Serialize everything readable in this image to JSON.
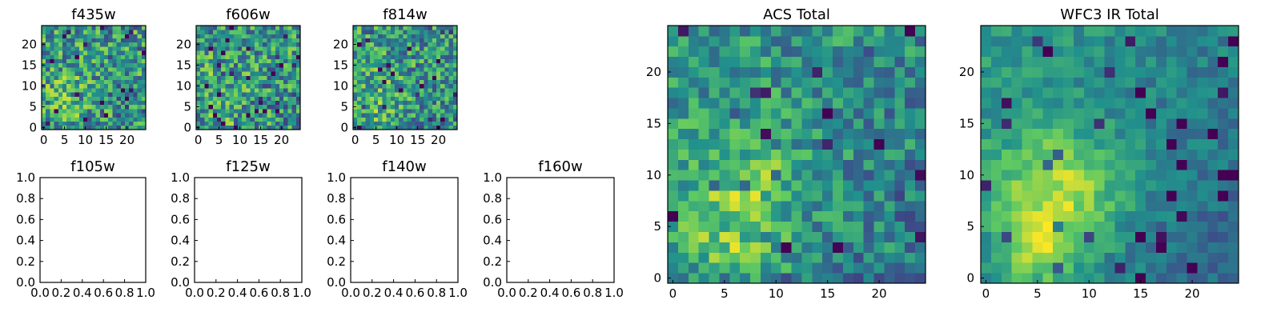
{
  "colormap": {
    "name": "viridis",
    "stops": [
      "#440154",
      "#3b528b",
      "#21918c",
      "#5ec962",
      "#fde725"
    ]
  },
  "chart_data": [
    {
      "type": "heatmap",
      "title": "f435w",
      "ylim": [
        -0.5,
        24.5
      ],
      "xlim": [
        -0.5,
        24.5
      ],
      "yticks": [
        0,
        5,
        10,
        15,
        20
      ],
      "xticks": [
        0,
        5,
        10,
        15,
        20
      ],
      "peak": {
        "x": 6,
        "y": 8
      },
      "contrast": 0.1,
      "noise": 0.32,
      "seed": 11
    },
    {
      "type": "heatmap",
      "title": "f606w",
      "ylim": [
        -0.5,
        24.5
      ],
      "xlim": [
        -0.5,
        24.5
      ],
      "yticks": [
        0,
        5,
        10,
        15,
        20
      ],
      "xticks": [
        0,
        5,
        10,
        15,
        20
      ],
      "peak": {
        "x": 6,
        "y": 8
      },
      "contrast": 0.1,
      "noise": 0.32,
      "seed": 23
    },
    {
      "type": "heatmap",
      "title": "f814w",
      "ylim": [
        -0.5,
        24.5
      ],
      "xlim": [
        -0.5,
        24.5
      ],
      "yticks": [
        0,
        5,
        10,
        15,
        20
      ],
      "xticks": [
        0,
        5,
        10,
        15,
        20
      ],
      "peak": {
        "x": 6,
        "y": 8
      },
      "contrast": 0.12,
      "noise": 0.3,
      "seed": 37
    },
    {
      "type": "empty",
      "title": "f105w",
      "xlim": [
        0,
        1
      ],
      "ylim": [
        0,
        1
      ],
      "xticks": [
        "0.0",
        "0.2",
        "0.4",
        "0.6",
        "0.8",
        "1.0"
      ],
      "yticks": [
        "0.0",
        "0.2",
        "0.4",
        "0.6",
        "0.8",
        "1.0"
      ]
    },
    {
      "type": "empty",
      "title": "f125w",
      "xlim": [
        0,
        1
      ],
      "ylim": [
        0,
        1
      ],
      "xticks": [
        "0.0",
        "0.2",
        "0.4",
        "0.6",
        "0.8",
        "1.0"
      ],
      "yticks": [
        "0.0",
        "0.2",
        "0.4",
        "0.6",
        "0.8",
        "1.0"
      ]
    },
    {
      "type": "empty",
      "title": "f140w",
      "xlim": [
        0,
        1
      ],
      "ylim": [
        0,
        1
      ],
      "xticks": [
        "0.0",
        "0.2",
        "0.4",
        "0.6",
        "0.8",
        "1.0"
      ],
      "yticks": [
        "0.0",
        "0.2",
        "0.4",
        "0.6",
        "0.8",
        "1.0"
      ]
    },
    {
      "type": "empty",
      "title": "f160w",
      "xlim": [
        0,
        1
      ],
      "ylim": [
        0,
        1
      ],
      "xticks": [
        "0.0",
        "0.2",
        "0.4",
        "0.6",
        "0.8",
        "1.0"
      ],
      "yticks": [
        "0.0",
        "0.2",
        "0.4",
        "0.6",
        "0.8",
        "1.0"
      ]
    },
    {
      "type": "heatmap",
      "title": "ACS Total",
      "ylim": [
        -0.5,
        24.5
      ],
      "xlim": [
        -0.5,
        24.5
      ],
      "yticks": [
        0,
        5,
        10,
        15,
        20
      ],
      "xticks": [
        0,
        5,
        10,
        15,
        20
      ],
      "peak": {
        "x": 7,
        "y": 8
      },
      "contrast": 0.28,
      "noise": 0.22,
      "seed": 53
    },
    {
      "type": "heatmap",
      "title": "WFC3 IR Total",
      "ylim": [
        -0.5,
        24.5
      ],
      "xlim": [
        -0.5,
        24.5
      ],
      "yticks": [
        0,
        5,
        10,
        15,
        20
      ],
      "xticks": [
        0,
        5,
        10,
        15,
        20
      ],
      "peak": {
        "x": 7,
        "y": 8
      },
      "contrast": 0.45,
      "noise": 0.12,
      "seed": 71
    }
  ]
}
